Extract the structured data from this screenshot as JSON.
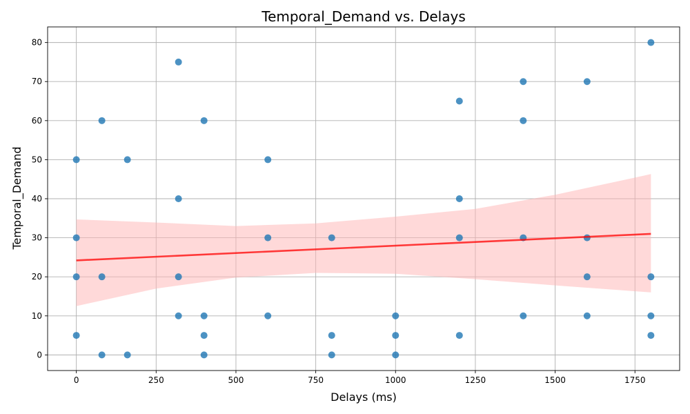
{
  "chart_data": {
    "type": "scatter",
    "title": "Temporal_Demand vs. Delays",
    "xlabel": "Delays (ms)",
    "ylabel": "Temporal_Demand",
    "xlim": [
      -90,
      1890
    ],
    "ylim": [
      -4,
      84
    ],
    "xticks": [
      0,
      250,
      500,
      750,
      1000,
      1250,
      1500,
      1750
    ],
    "yticks": [
      0,
      10,
      20,
      30,
      40,
      50,
      60,
      70,
      80
    ],
    "grid": true,
    "point_color": "#1f77b4",
    "line_color": "#ff0000",
    "band_color": "#ffb3b3",
    "points": [
      {
        "x": 0,
        "y": 50
      },
      {
        "x": 0,
        "y": 30
      },
      {
        "x": 0,
        "y": 20
      },
      {
        "x": 0,
        "y": 5
      },
      {
        "x": 80,
        "y": 60
      },
      {
        "x": 80,
        "y": 20
      },
      {
        "x": 80,
        "y": 0
      },
      {
        "x": 160,
        "y": 50
      },
      {
        "x": 160,
        "y": 0
      },
      {
        "x": 320,
        "y": 75
      },
      {
        "x": 320,
        "y": 40
      },
      {
        "x": 320,
        "y": 20
      },
      {
        "x": 320,
        "y": 10
      },
      {
        "x": 400,
        "y": 60
      },
      {
        "x": 400,
        "y": 10
      },
      {
        "x": 400,
        "y": 5
      },
      {
        "x": 400,
        "y": 0
      },
      {
        "x": 600,
        "y": 50
      },
      {
        "x": 600,
        "y": 30
      },
      {
        "x": 600,
        "y": 10
      },
      {
        "x": 800,
        "y": 30
      },
      {
        "x": 800,
        "y": 5
      },
      {
        "x": 800,
        "y": 0
      },
      {
        "x": 1000,
        "y": 10
      },
      {
        "x": 1000,
        "y": 5
      },
      {
        "x": 1000,
        "y": 0
      },
      {
        "x": 1200,
        "y": 65
      },
      {
        "x": 1200,
        "y": 40
      },
      {
        "x": 1200,
        "y": 30
      },
      {
        "x": 1200,
        "y": 5
      },
      {
        "x": 1400,
        "y": 70
      },
      {
        "x": 1400,
        "y": 60
      },
      {
        "x": 1400,
        "y": 30
      },
      {
        "x": 1400,
        "y": 10
      },
      {
        "x": 1600,
        "y": 70
      },
      {
        "x": 1600,
        "y": 30
      },
      {
        "x": 1600,
        "y": 20
      },
      {
        "x": 1600,
        "y": 10
      },
      {
        "x": 1800,
        "y": 80
      },
      {
        "x": 1800,
        "y": 20
      },
      {
        "x": 1800,
        "y": 10
      },
      {
        "x": 1800,
        "y": 5
      }
    ],
    "regression": {
      "x": [
        0,
        1800
      ],
      "y": [
        24.2,
        31.0
      ]
    },
    "confidence_band": {
      "x": [
        0,
        250,
        500,
        750,
        1000,
        1250,
        1500,
        1750,
        1800
      ],
      "upper": [
        34.7,
        33.9,
        33.0,
        33.7,
        35.4,
        37.4,
        41.0,
        45.4,
        46.3
      ],
      "lower": [
        12.5,
        17.0,
        19.8,
        21.0,
        20.8,
        19.4,
        17.8,
        16.3,
        16.0
      ]
    }
  }
}
